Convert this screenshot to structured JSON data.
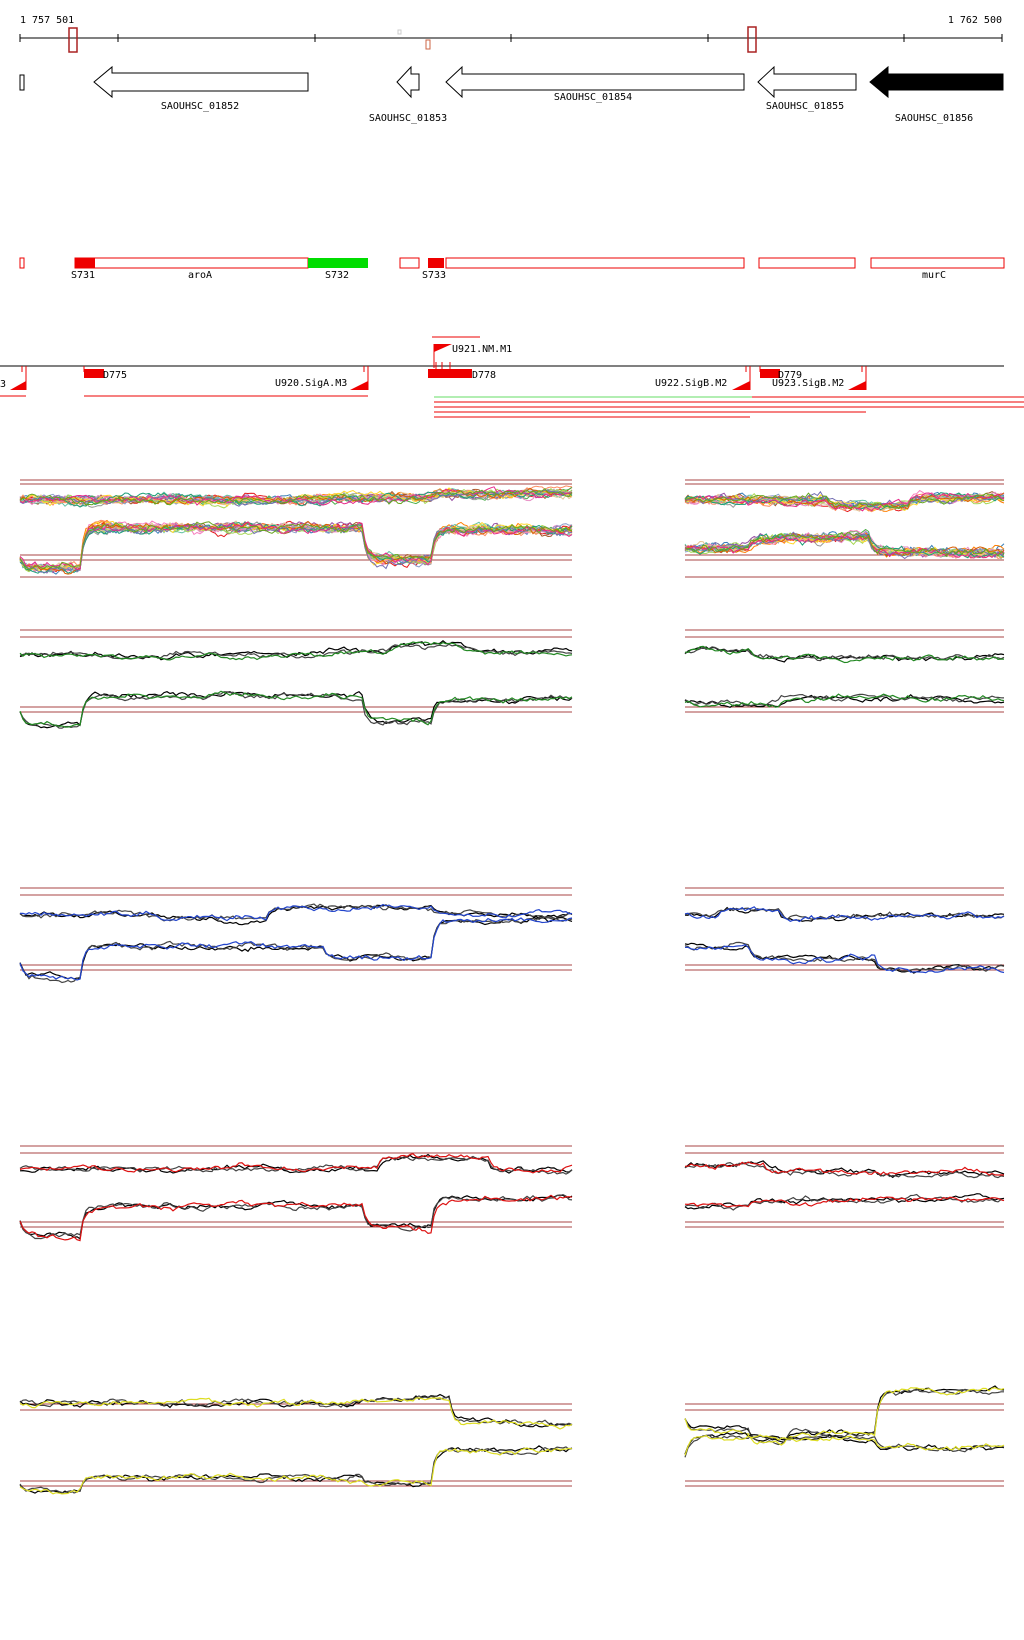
{
  "coordinates": {
    "start": "1 757 501",
    "end": "1 762 500"
  },
  "genes": [
    {
      "name": "SAOUHSC_01852"
    },
    {
      "name": "SAOUHSC_01853"
    },
    {
      "name": "SAOUHSC_01854"
    },
    {
      "name": "SAOUHSC_01855"
    },
    {
      "name": "SAOUHSC_01856"
    }
  ],
  "segments": [
    {
      "label": "S731"
    },
    {
      "label": "aroA"
    },
    {
      "label": "S732"
    },
    {
      "label": "S733"
    },
    {
      "label": "murC"
    }
  ],
  "features": [
    {
      "label": "3"
    },
    {
      "label": "D775"
    },
    {
      "label": "U920.SigA.M3"
    },
    {
      "label": "U921.NM.M1"
    },
    {
      "label": "D778"
    },
    {
      "label": "U922.SigB.M2"
    },
    {
      "label": "D779"
    },
    {
      "label": "U923.SigB.M2"
    }
  ],
  "colors": {
    "segment_red": "#ee0000",
    "segment_green": "#00dd00",
    "threshold": "#aa4444",
    "panel2_series": "#228822",
    "panel3_series": "#2244cc",
    "panel4_series": "#dd1111",
    "panel5_series": "#dddd22"
  }
}
